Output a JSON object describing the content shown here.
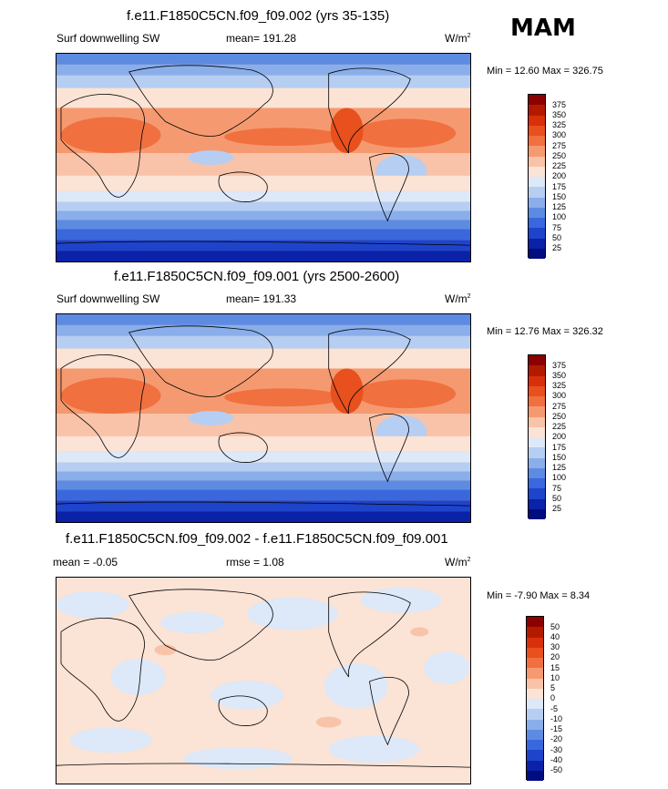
{
  "season": "MAM",
  "panels": [
    {
      "title": "f.e11.F1850C5CN.f09_f09.002 (yrs 35-135)",
      "left_label": "Surf downwelling SW",
      "mean_text": "mean= 191.28",
      "units": "W/m",
      "units_exp": "2",
      "minmax": "Min =  12.60 Max = 326.75",
      "levels": [
        "375",
        "350",
        "325",
        "300",
        "275",
        "250",
        "225",
        "200",
        "175",
        "150",
        "125",
        "100",
        "75",
        "50",
        "25"
      ]
    },
    {
      "title": "f.e11.F1850C5CN.f09_f09.001 (yrs 2500-2600)",
      "left_label": "Surf downwelling SW",
      "mean_text": "mean= 191.33",
      "units": "W/m",
      "units_exp": "2",
      "minmax": "Min =  12.76 Max = 326.32",
      "levels": [
        "375",
        "350",
        "325",
        "300",
        "275",
        "250",
        "225",
        "200",
        "175",
        "150",
        "125",
        "100",
        "75",
        "50",
        "25"
      ]
    },
    {
      "title": "f.e11.F1850C5CN.f09_f09.002 - f.e11.F1850C5CN.f09_f09.001",
      "left_label": "mean =  -0.05",
      "mean_text": "rmse =   1.08",
      "units": "W/m",
      "units_exp": "2",
      "minmax": "Min =  -7.90 Max =   8.34",
      "levels": [
        "50",
        "40",
        "30",
        "20",
        "15",
        "10",
        "5",
        "0",
        "-5",
        "-10",
        "-15",
        "-20",
        "-30",
        "-40",
        "-50"
      ]
    }
  ],
  "colors": {
    "sw_scale": [
      "#8b0000",
      "#b21a00",
      "#d8300a",
      "#e8501e",
      "#f07040",
      "#f59a70",
      "#f8c3a8",
      "#fbe3d6",
      "#dde8f8",
      "#b6cef2",
      "#8aaeea",
      "#5e8be2",
      "#3a68dc",
      "#1e44cc",
      "#0a22a8",
      "#000c80"
    ],
    "diff_scale": [
      "#8b0000",
      "#b21a00",
      "#d8300a",
      "#e8501e",
      "#f07040",
      "#f59a70",
      "#f8c3a8",
      "#fbe3d6",
      "#dde8f8",
      "#b6cef2",
      "#8aaeea",
      "#5e8be2",
      "#3a68dc",
      "#1e44cc",
      "#0a22a8",
      "#000c80"
    ]
  }
}
